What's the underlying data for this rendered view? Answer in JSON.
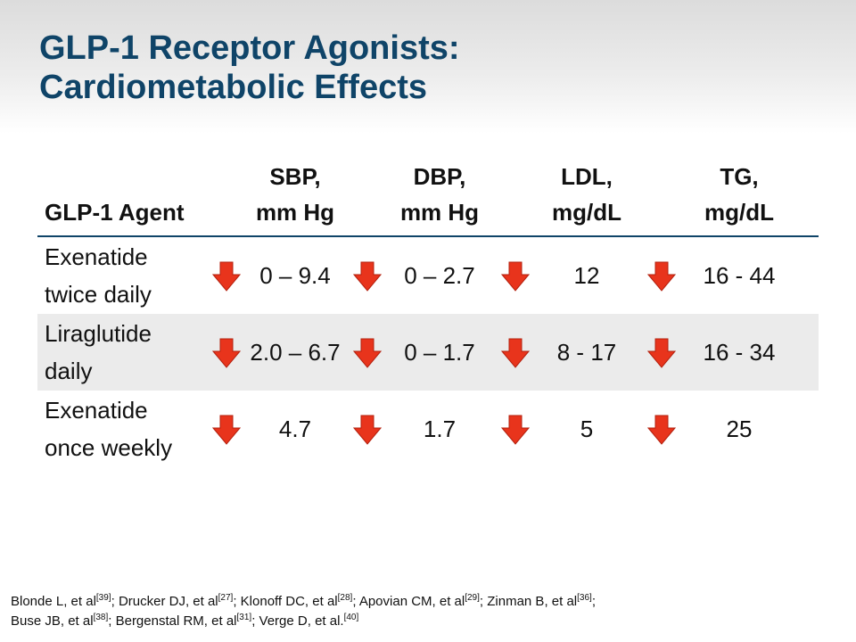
{
  "title": {
    "line1": "GLP-1 Receptor Agonists:",
    "line2": "Cardiometabolic Effects"
  },
  "table": {
    "headers": [
      {
        "line1": "",
        "line2": "GLP-1 Agent"
      },
      {
        "line1": "SBP,",
        "line2": "mm Hg"
      },
      {
        "line1": "DBP,",
        "line2": "mm Hg"
      },
      {
        "line1": "LDL,",
        "line2": "mg/dL"
      },
      {
        "line1": "TG,",
        "line2": "mg/dL"
      }
    ],
    "rows": [
      {
        "agent_line1": "Exenatide",
        "agent_line2": "twice daily",
        "values": [
          "0 – 9.4",
          "0 – 2.7",
          "12",
          "16 - 44"
        ]
      },
      {
        "agent_line1": "Liraglutide",
        "agent_line2": "daily",
        "values": [
          "2.0 – 6.7",
          "0 – 1.7",
          "8 - 17",
          "16 - 34"
        ]
      },
      {
        "agent_line1": "Exenatide",
        "agent_line2": "once weekly",
        "values": [
          "4.7",
          "1.7",
          "5",
          "25"
        ]
      }
    ],
    "arrow_color": "#e8341c",
    "arrow_icon": "down-arrow-icon"
  },
  "references": {
    "line1": [
      {
        "text": "Blonde L, et al",
        "sup": "[39]",
        "sep": "; "
      },
      {
        "text": "Drucker DJ, et al",
        "sup": "[27]",
        "sep": "; "
      },
      {
        "text": "Klonoff DC, et al",
        "sup": "[28]",
        "sep": "; "
      },
      {
        "text": "Apovian CM, et al",
        "sup": "[29]",
        "sep": "; "
      },
      {
        "text": "Zinman B, et al",
        "sup": "[36]",
        "sep": ";"
      }
    ],
    "line2": [
      {
        "text": "Buse JB, et al",
        "sup": "[38]",
        "sep": "; "
      },
      {
        "text": "Bergenstal RM, et al",
        "sup": "[31]",
        "sep": "; "
      },
      {
        "text": "Verge D, et al.",
        "sup": "[40]",
        "sep": ""
      }
    ]
  }
}
